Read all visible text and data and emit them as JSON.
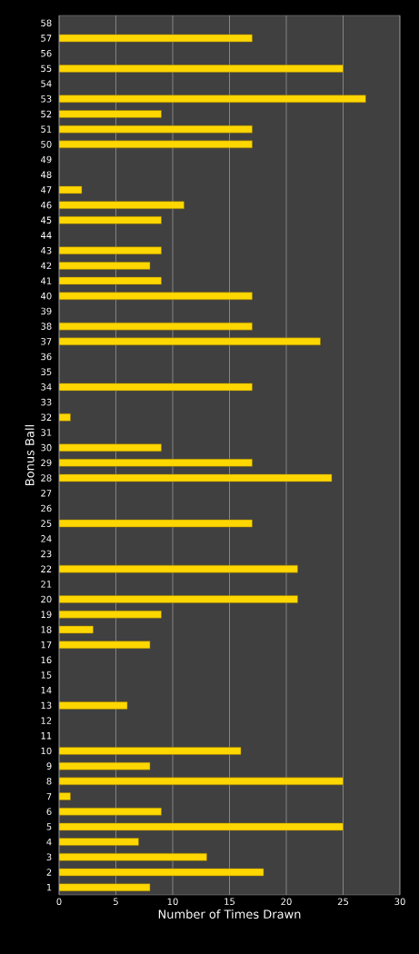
{
  "chart_data": {
    "type": "bar",
    "orientation": "horizontal",
    "xlabel": "Number of Times Drawn",
    "ylabel": "Bonus Ball",
    "categories": [
      "58",
      "57",
      "56",
      "55",
      "54",
      "53",
      "52",
      "51",
      "50",
      "49",
      "48",
      "47",
      "46",
      "45",
      "44",
      "43",
      "42",
      "41",
      "40",
      "39",
      "38",
      "37",
      "36",
      "35",
      "34",
      "33",
      "32",
      "31",
      "30",
      "29",
      "28",
      "27",
      "26",
      "25",
      "24",
      "23",
      "22",
      "21",
      "20",
      "19",
      "18",
      "17",
      "16",
      "15",
      "14",
      "13",
      "12",
      "11",
      "10",
      "9",
      "8",
      "7",
      "6",
      "5",
      "4",
      "3",
      "2",
      "1"
    ],
    "values": [
      0,
      17,
      0,
      25,
      0,
      27,
      9,
      17,
      17,
      0,
      0,
      2,
      11,
      9,
      0,
      9,
      8,
      9,
      17,
      0,
      17,
      23,
      0,
      0,
      17,
      0,
      1,
      0,
      9,
      17,
      24,
      0,
      0,
      17,
      0,
      0,
      21,
      0,
      21,
      9,
      3,
      8,
      0,
      0,
      0,
      6,
      0,
      0,
      16,
      8,
      25,
      1,
      9,
      25,
      7,
      13,
      18,
      8
    ],
    "color": "#ffd700",
    "xlim": [
      0,
      30
    ],
    "xticks": [
      0,
      5,
      10,
      15,
      20,
      25,
      30
    ],
    "grid": "x"
  }
}
